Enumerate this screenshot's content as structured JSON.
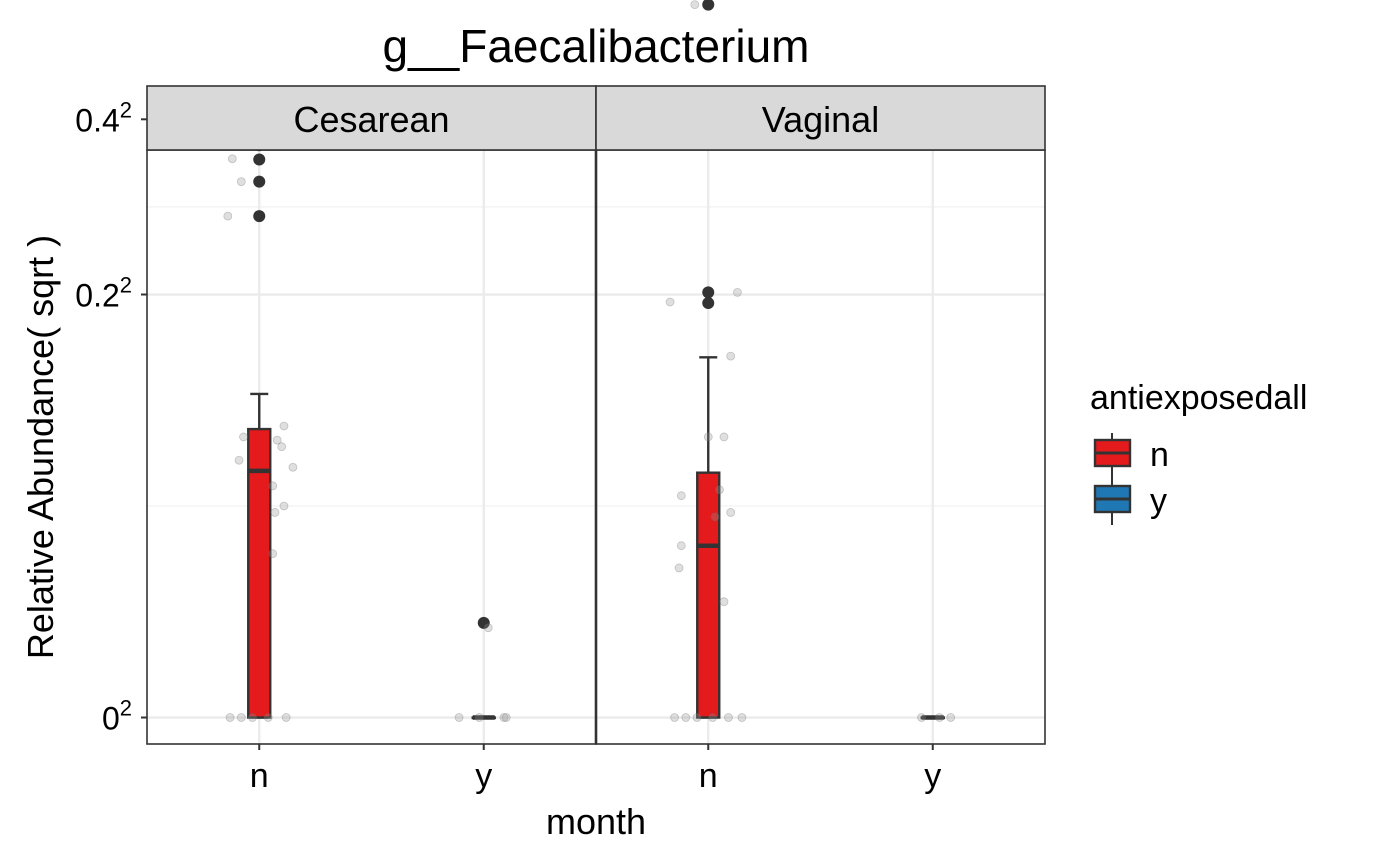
{
  "chart_data": {
    "type": "box",
    "title": "g__Faecalibacterium",
    "xlabel": "month",
    "ylabel": "Relative Abundance( sqrt )",
    "y_scale": "sqrt",
    "y_ticks": [
      {
        "value": 0,
        "base": "0",
        "exp": "2"
      },
      {
        "value": 0.2,
        "base": "0.2",
        "exp": "2"
      },
      {
        "value": 0.4,
        "base": "0.4",
        "exp": "2"
      }
    ],
    "ylim_sqrt": [
      -0.028,
      0.6
    ],
    "grid": true,
    "legend": {
      "title": "antiexposedall",
      "placement": "right",
      "items": [
        {
          "label": "n",
          "color": "#E41A1C"
        },
        {
          "label": "y",
          "color": "#1F78B4"
        }
      ]
    },
    "panels": [
      {
        "strip": "Cesarean",
        "categories": [
          "n",
          "y"
        ],
        "boxes": [
          {
            "x": "n",
            "group": "n",
            "whisker_low": 0,
            "q1": 0,
            "median": 0.068,
            "q3": 0.093,
            "whisker_high": 0.117,
            "outliers": [
              0.378,
              0.366,
              0.348,
              0.321,
              0.281
            ],
            "jitter": [
              {
                "dx": -0.12,
                "y": 0.378
              },
              {
                "dx": -0.12,
                "y": 0.349
              },
              {
                "dx": 0.07,
                "y": 0.366
              },
              {
                "dx": -0.08,
                "y": 0.321
              },
              {
                "dx": -0.14,
                "y": 0.281
              },
              {
                "dx": 0.11,
                "y": 0.095
              },
              {
                "dx": -0.07,
                "y": 0.088
              },
              {
                "dx": 0.08,
                "y": 0.086
              },
              {
                "dx": 0.1,
                "y": 0.082
              },
              {
                "dx": -0.09,
                "y": 0.074
              },
              {
                "dx": 0.15,
                "y": 0.07
              },
              {
                "dx": 0.06,
                "y": 0.06
              },
              {
                "dx": 0.11,
                "y": 0.05
              },
              {
                "dx": 0.07,
                "y": 0.047
              },
              {
                "dx": 0.06,
                "y": 0.03
              },
              {
                "dx": -0.13,
                "y": 0
              },
              {
                "dx": -0.08,
                "y": 0
              },
              {
                "dx": -0.03,
                "y": 0
              },
              {
                "dx": 0.04,
                "y": 0
              },
              {
                "dx": 0.12,
                "y": 0
              }
            ]
          },
          {
            "x": "y",
            "group": "y",
            "whisker_low": 0,
            "q1": 0,
            "median": 0,
            "q3": 0,
            "whisker_high": 0,
            "outliers": [
              0.01
            ],
            "jitter": [
              {
                "dx": -0.11,
                "y": 0
              },
              {
                "dx": -0.02,
                "y": 0
              },
              {
                "dx": 0.09,
                "y": 0
              },
              {
                "dx": 0.02,
                "y": 0.009
              },
              {
                "dx": 0.1,
                "y": 0
              }
            ]
          }
        ]
      },
      {
        "strip": "Vaginal",
        "categories": [
          "n",
          "y"
        ],
        "boxes": [
          {
            "x": "n",
            "group": "n",
            "whisker_low": 0,
            "q1": 0,
            "median": 0.033,
            "q3": 0.067,
            "whisker_high": 0.145,
            "outliers": [
              0.568,
              0.202,
              0.192
            ],
            "jitter": [
              {
                "dx": -0.06,
                "y": 0.568
              },
              {
                "dx": -0.17,
                "y": 0.193
              },
              {
                "dx": 0.13,
                "y": 0.202
              },
              {
                "dx": 0.1,
                "y": 0.146
              },
              {
                "dx": 0.0,
                "y": 0.088
              },
              {
                "dx": 0.07,
                "y": 0.088
              },
              {
                "dx": 0.05,
                "y": 0.058
              },
              {
                "dx": -0.12,
                "y": 0.055
              },
              {
                "dx": 0.1,
                "y": 0.047
              },
              {
                "dx": 0.03,
                "y": 0.045
              },
              {
                "dx": -0.12,
                "y": 0.033
              },
              {
                "dx": -0.13,
                "y": 0.025
              },
              {
                "dx": 0.07,
                "y": 0.015
              },
              {
                "dx": -0.15,
                "y": 0
              },
              {
                "dx": -0.1,
                "y": 0
              },
              {
                "dx": -0.05,
                "y": 0
              },
              {
                "dx": 0.02,
                "y": 0
              },
              {
                "dx": 0.09,
                "y": 0
              },
              {
                "dx": 0.15,
                "y": 0
              }
            ]
          },
          {
            "x": "y",
            "group": "y",
            "whisker_low": 0,
            "q1": 0,
            "median": 0,
            "q3": 0,
            "whisker_high": 0,
            "outliers": [],
            "jitter": [
              {
                "dx": -0.05,
                "y": 0
              },
              {
                "dx": 0.03,
                "y": 0
              },
              {
                "dx": 0.08,
                "y": 0
              }
            ]
          }
        ]
      }
    ]
  }
}
